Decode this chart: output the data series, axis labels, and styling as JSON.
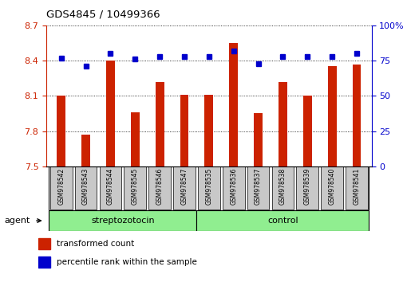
{
  "title": "GDS4845 / 10499366",
  "categories": [
    "GSM978542",
    "GSM978543",
    "GSM978544",
    "GSM978545",
    "GSM978546",
    "GSM978547",
    "GSM978535",
    "GSM978536",
    "GSM978537",
    "GSM978538",
    "GSM978539",
    "GSM978540",
    "GSM978541"
  ],
  "bar_values": [
    8.1,
    7.77,
    8.4,
    7.96,
    8.22,
    8.11,
    8.11,
    8.55,
    7.95,
    8.22,
    8.1,
    8.35,
    8.37
  ],
  "dot_values": [
    77,
    71,
    80,
    76,
    78,
    78,
    78,
    82,
    73,
    78,
    78,
    78,
    80
  ],
  "bar_color": "#cc2200",
  "dot_color": "#0000cc",
  "ylim_left": [
    7.5,
    8.7
  ],
  "ylim_right": [
    0,
    100
  ],
  "yticks_left": [
    7.5,
    7.8,
    8.1,
    8.4,
    8.7
  ],
  "yticks_right": [
    0,
    25,
    50,
    75,
    100
  ],
  "ytick_labels_right": [
    "0",
    "25",
    "50",
    "75",
    "100%"
  ],
  "group1_label": "streptozotocin",
  "group2_label": "control",
  "group1_count": 6,
  "group2_count": 7,
  "agent_label": "agent",
  "legend_bar_label": "transformed count",
  "legend_dot_label": "percentile rank within the sample",
  "background_color": "#ffffff",
  "tick_area_color": "#c8c8c8",
  "group_bar_color": "#90ee90",
  "bar_width": 0.35
}
